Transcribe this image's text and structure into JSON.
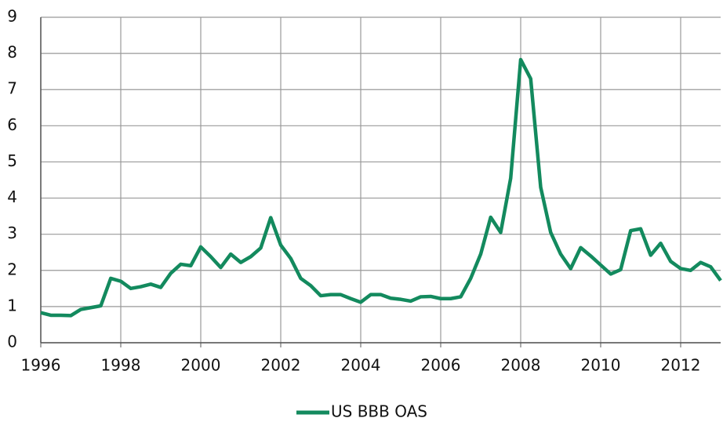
{
  "chart_data": {
    "type": "line",
    "x": [
      1996.0,
      1996.25,
      1996.5,
      1996.75,
      1997.0,
      1997.25,
      1997.5,
      1997.75,
      1998.0,
      1998.25,
      1998.5,
      1998.75,
      1999.0,
      1999.25,
      1999.5,
      1999.75,
      2000.0,
      2000.25,
      2000.5,
      2000.75,
      2001.0,
      2001.25,
      2001.5,
      2001.75,
      2002.0,
      2002.25,
      2002.5,
      2002.75,
      2003.0,
      2003.25,
      2003.5,
      2003.75,
      2004.0,
      2004.25,
      2004.5,
      2004.75,
      2005.0,
      2005.25,
      2005.5,
      2005.75,
      2006.0,
      2006.25,
      2006.5,
      2006.75,
      2007.0,
      2007.25,
      2007.5,
      2007.75,
      2008.0,
      2008.25,
      2008.5,
      2008.75,
      2009.0,
      2009.25,
      2009.5,
      2009.75,
      2010.0,
      2010.25,
      2010.5,
      2010.75,
      2011.0,
      2011.25,
      2011.5,
      2011.75,
      2012.0,
      2012.25,
      2012.5,
      2012.75,
      2013.0
    ],
    "series": [
      {
        "name": "US BBB OAS",
        "color": "#138a5e",
        "values": [
          0.83,
          0.76,
          0.76,
          0.75,
          0.92,
          0.97,
          1.02,
          1.78,
          1.7,
          1.5,
          1.55,
          1.62,
          1.53,
          1.92,
          2.17,
          2.13,
          2.65,
          2.38,
          2.08,
          2.45,
          2.22,
          2.38,
          2.62,
          3.46,
          2.7,
          2.33,
          1.78,
          1.58,
          1.3,
          1.33,
          1.33,
          1.22,
          1.12,
          1.33,
          1.33,
          1.23,
          1.2,
          1.15,
          1.27,
          1.28,
          1.22,
          1.22,
          1.27,
          1.78,
          2.45,
          3.47,
          3.05,
          4.55,
          7.83,
          7.3,
          4.3,
          3.05,
          2.45,
          2.05,
          2.63,
          2.4,
          2.15,
          1.9,
          2.02,
          3.1,
          3.15,
          2.42,
          2.75,
          2.25,
          2.05,
          2.0,
          2.22,
          2.1,
          1.72
        ]
      }
    ],
    "xlim": [
      1996,
      2013
    ],
    "xticks": [
      1996,
      1998,
      2000,
      2002,
      2004,
      2006,
      2008,
      2010,
      2012
    ],
    "ylim": [
      0,
      9
    ],
    "yticks": [
      0,
      1,
      2,
      3,
      4,
      5,
      6,
      7,
      8,
      9
    ],
    "grid": true,
    "legend": "bottom"
  }
}
